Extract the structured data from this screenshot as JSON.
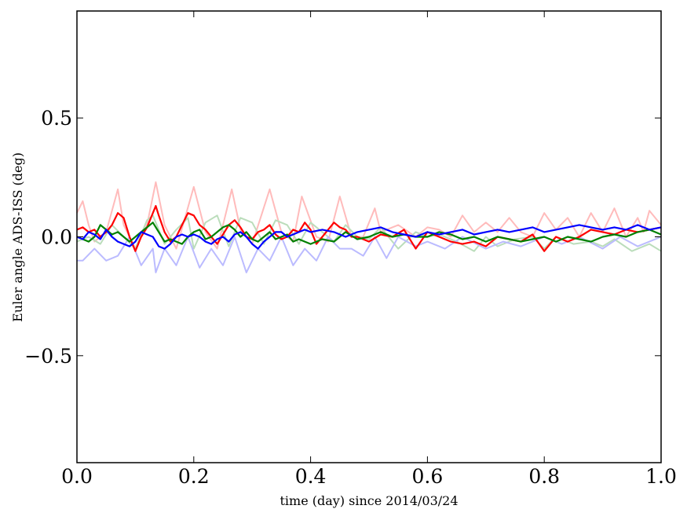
{
  "chart_data": {
    "type": "line",
    "xlabel": "time (day) since 2014/03/24",
    "ylabel": "Euler angle ADS-ISS (deg)",
    "xlim": [
      0.0,
      1.0
    ],
    "ylim": [
      -0.95,
      0.95
    ],
    "xticks": [
      0.0,
      0.2,
      0.4,
      0.6,
      0.8,
      1.0
    ],
    "xtick_labels": [
      "0.0",
      "0.2",
      "0.4",
      "0.6",
      "0.8",
      "1.0"
    ],
    "yticks": [
      -0.5,
      0.0,
      0.5
    ],
    "ytick_labels": [
      "−0.5",
      "0.0",
      "0.5"
    ],
    "grid": false,
    "legend": "none",
    "series": [
      {
        "color": "#ffbbbb",
        "width": 2,
        "x": [
          0.0,
          0.01,
          0.02,
          0.03,
          0.05,
          0.07,
          0.08,
          0.1,
          0.12,
          0.135,
          0.15,
          0.17,
          0.2,
          0.22,
          0.24,
          0.265,
          0.28,
          0.3,
          0.33,
          0.35,
          0.37,
          0.385,
          0.41,
          0.43,
          0.45,
          0.47,
          0.49,
          0.51,
          0.52,
          0.55,
          0.58,
          0.6,
          0.62,
          0.64,
          0.66,
          0.68,
          0.7,
          0.72,
          0.74,
          0.76,
          0.78,
          0.8,
          0.82,
          0.84,
          0.86,
          0.88,
          0.9,
          0.92,
          0.94,
          0.96,
          0.97,
          0.98,
          1.0
        ],
        "y": [
          0.1,
          0.15,
          0.05,
          -0.02,
          0.02,
          0.2,
          0.05,
          -0.05,
          0.05,
          0.23,
          0.05,
          -0.05,
          0.21,
          0.02,
          -0.05,
          0.2,
          0.03,
          -0.03,
          0.2,
          0.02,
          -0.02,
          0.17,
          0.0,
          -0.02,
          0.17,
          0.0,
          0.0,
          0.12,
          0.02,
          0.05,
          0.0,
          0.04,
          0.03,
          0.0,
          0.09,
          0.02,
          0.06,
          0.02,
          0.08,
          0.02,
          0.0,
          0.1,
          0.03,
          0.08,
          0.0,
          0.1,
          0.02,
          0.12,
          0.0,
          0.08,
          0.02,
          0.11,
          0.05
        ]
      },
      {
        "color": "#bbddbb",
        "width": 2,
        "x": [
          0.0,
          0.02,
          0.04,
          0.06,
          0.08,
          0.1,
          0.12,
          0.13,
          0.15,
          0.17,
          0.19,
          0.2,
          0.22,
          0.24,
          0.26,
          0.28,
          0.3,
          0.32,
          0.34,
          0.36,
          0.38,
          0.4,
          0.42,
          0.44,
          0.46,
          0.48,
          0.5,
          0.52,
          0.55,
          0.58,
          0.6,
          0.62,
          0.65,
          0.68,
          0.7,
          0.72,
          0.75,
          0.78,
          0.8,
          0.82,
          0.85,
          0.88,
          0.9,
          0.92,
          0.95,
          0.98,
          1.0
        ],
        "y": [
          -0.02,
          0.0,
          -0.03,
          0.05,
          0.0,
          -0.05,
          0.07,
          0.09,
          -0.03,
          0.03,
          0.08,
          -0.05,
          0.06,
          0.09,
          -0.04,
          0.08,
          0.06,
          -0.03,
          0.07,
          0.05,
          -0.03,
          0.06,
          0.02,
          -0.02,
          0.05,
          0.0,
          -0.01,
          0.04,
          -0.05,
          0.02,
          0.0,
          0.01,
          -0.02,
          -0.06,
          0.0,
          -0.04,
          -0.01,
          0.0,
          -0.05,
          0.0,
          -0.03,
          -0.02,
          -0.04,
          -0.01,
          -0.06,
          -0.03,
          -0.06
        ]
      },
      {
        "color": "#bbbbff",
        "width": 2,
        "x": [
          0.0,
          0.01,
          0.03,
          0.05,
          0.07,
          0.09,
          0.11,
          0.13,
          0.135,
          0.15,
          0.17,
          0.19,
          0.21,
          0.23,
          0.25,
          0.27,
          0.29,
          0.31,
          0.33,
          0.35,
          0.37,
          0.39,
          0.41,
          0.43,
          0.45,
          0.47,
          0.49,
          0.51,
          0.53,
          0.55,
          0.58,
          0.6,
          0.63,
          0.66,
          0.7,
          0.73,
          0.76,
          0.8,
          0.83,
          0.86,
          0.9,
          0.93,
          0.96,
          1.0
        ],
        "y": [
          -0.1,
          -0.1,
          -0.05,
          -0.1,
          -0.08,
          0.0,
          -0.12,
          -0.05,
          -0.15,
          -0.05,
          -0.12,
          0.0,
          -0.13,
          -0.05,
          -0.12,
          0.0,
          -0.15,
          -0.05,
          -0.1,
          0.0,
          -0.12,
          -0.05,
          -0.1,
          0.0,
          -0.05,
          -0.05,
          -0.08,
          0.0,
          -0.09,
          0.0,
          -0.04,
          -0.02,
          -0.05,
          0.0,
          -0.05,
          -0.02,
          -0.04,
          0.0,
          -0.03,
          0.0,
          -0.05,
          0.0,
          -0.04,
          0.0
        ]
      },
      {
        "color": "#ff0000",
        "width": 2.2,
        "x": [
          0.0,
          0.01,
          0.02,
          0.03,
          0.04,
          0.05,
          0.06,
          0.07,
          0.08,
          0.09,
          0.1,
          0.11,
          0.12,
          0.13,
          0.135,
          0.14,
          0.15,
          0.16,
          0.17,
          0.18,
          0.19,
          0.2,
          0.21,
          0.22,
          0.23,
          0.24,
          0.25,
          0.26,
          0.27,
          0.28,
          0.29,
          0.3,
          0.31,
          0.32,
          0.33,
          0.34,
          0.35,
          0.36,
          0.37,
          0.38,
          0.39,
          0.4,
          0.41,
          0.42,
          0.43,
          0.44,
          0.45,
          0.46,
          0.47,
          0.48,
          0.5,
          0.52,
          0.54,
          0.56,
          0.58,
          0.6,
          0.62,
          0.64,
          0.66,
          0.68,
          0.7,
          0.72,
          0.74,
          0.76,
          0.78,
          0.8,
          0.82,
          0.84,
          0.86,
          0.88,
          0.9,
          0.92,
          0.94,
          0.96,
          0.98,
          1.0
        ],
        "y": [
          0.03,
          0.04,
          0.02,
          0.03,
          0.0,
          0.02,
          0.05,
          0.1,
          0.08,
          0.0,
          -0.06,
          0.0,
          0.04,
          0.1,
          0.13,
          0.09,
          0.02,
          -0.02,
          0.0,
          0.05,
          0.1,
          0.09,
          0.05,
          0.03,
          0.0,
          -0.03,
          0.01,
          0.05,
          0.07,
          0.04,
          0.0,
          -0.01,
          0.02,
          0.03,
          0.05,
          0.01,
          -0.01,
          0.0,
          0.03,
          0.02,
          0.06,
          0.03,
          -0.03,
          0.0,
          0.03,
          0.06,
          0.04,
          0.03,
          0.0,
          0.0,
          -0.02,
          0.01,
          0.0,
          0.03,
          -0.05,
          0.02,
          0.0,
          -0.02,
          -0.03,
          -0.02,
          -0.04,
          0.0,
          -0.01,
          -0.02,
          0.01,
          -0.06,
          0.0,
          -0.02,
          0.0,
          0.03,
          0.02,
          0.01,
          0.03,
          0.02,
          0.03,
          0.04
        ]
      },
      {
        "color": "#008000",
        "width": 2.2,
        "x": [
          0.0,
          0.01,
          0.02,
          0.03,
          0.04,
          0.05,
          0.06,
          0.07,
          0.08,
          0.09,
          0.1,
          0.11,
          0.12,
          0.13,
          0.14,
          0.15,
          0.16,
          0.17,
          0.18,
          0.19,
          0.2,
          0.21,
          0.22,
          0.23,
          0.24,
          0.25,
          0.26,
          0.27,
          0.28,
          0.29,
          0.3,
          0.31,
          0.32,
          0.33,
          0.34,
          0.35,
          0.36,
          0.37,
          0.38,
          0.39,
          0.4,
          0.42,
          0.44,
          0.46,
          0.48,
          0.5,
          0.52,
          0.54,
          0.56,
          0.58,
          0.6,
          0.62,
          0.64,
          0.66,
          0.68,
          0.7,
          0.72,
          0.74,
          0.76,
          0.78,
          0.8,
          0.82,
          0.84,
          0.86,
          0.88,
          0.9,
          0.92,
          0.94,
          0.96,
          0.98,
          1.0
        ],
        "y": [
          0.0,
          -0.01,
          -0.02,
          0.0,
          0.05,
          0.03,
          0.01,
          0.02,
          0.0,
          -0.02,
          0.0,
          0.02,
          0.04,
          0.06,
          0.02,
          -0.02,
          -0.01,
          -0.02,
          -0.03,
          0.0,
          0.02,
          0.03,
          -0.01,
          0.0,
          0.02,
          0.04,
          0.05,
          0.03,
          0.0,
          0.02,
          -0.01,
          -0.02,
          0.0,
          0.02,
          -0.01,
          0.0,
          0.01,
          -0.02,
          -0.01,
          -0.02,
          -0.03,
          -0.01,
          -0.02,
          0.02,
          -0.01,
          0.0,
          0.02,
          0.0,
          0.01,
          0.0,
          0.0,
          0.02,
          0.01,
          -0.01,
          0.0,
          -0.02,
          0.0,
          -0.01,
          -0.02,
          -0.01,
          0.0,
          -0.02,
          0.0,
          -0.01,
          -0.02,
          0.0,
          0.01,
          0.0,
          0.02,
          0.03,
          0.01
        ]
      },
      {
        "color": "#0000ff",
        "width": 2.2,
        "x": [
          0.0,
          0.01,
          0.02,
          0.03,
          0.04,
          0.05,
          0.06,
          0.07,
          0.08,
          0.09,
          0.1,
          0.11,
          0.12,
          0.13,
          0.14,
          0.15,
          0.16,
          0.17,
          0.18,
          0.19,
          0.2,
          0.21,
          0.22,
          0.23,
          0.24,
          0.25,
          0.26,
          0.27,
          0.28,
          0.29,
          0.3,
          0.31,
          0.32,
          0.33,
          0.34,
          0.35,
          0.36,
          0.37,
          0.38,
          0.39,
          0.4,
          0.42,
          0.44,
          0.46,
          0.48,
          0.5,
          0.52,
          0.54,
          0.56,
          0.58,
          0.6,
          0.62,
          0.64,
          0.66,
          0.68,
          0.7,
          0.72,
          0.74,
          0.76,
          0.78,
          0.8,
          0.82,
          0.84,
          0.86,
          0.88,
          0.9,
          0.92,
          0.94,
          0.96,
          0.98,
          1.0
        ],
        "y": [
          0.0,
          -0.01,
          0.02,
          0.01,
          -0.01,
          0.03,
          0.0,
          -0.02,
          -0.03,
          -0.04,
          -0.02,
          0.02,
          0.01,
          0.0,
          -0.04,
          -0.05,
          -0.03,
          0.0,
          0.01,
          0.0,
          0.01,
          0.0,
          -0.02,
          -0.03,
          -0.01,
          0.0,
          -0.02,
          0.01,
          0.02,
          0.0,
          -0.03,
          -0.05,
          -0.02,
          0.0,
          0.02,
          0.02,
          0.0,
          0.01,
          0.02,
          0.03,
          0.02,
          0.03,
          0.02,
          0.0,
          0.02,
          0.03,
          0.04,
          0.02,
          0.01,
          0.0,
          0.02,
          0.01,
          0.02,
          0.03,
          0.01,
          0.02,
          0.03,
          0.02,
          0.03,
          0.04,
          0.02,
          0.03,
          0.04,
          0.05,
          0.04,
          0.03,
          0.04,
          0.03,
          0.05,
          0.03,
          0.04
        ]
      }
    ]
  }
}
